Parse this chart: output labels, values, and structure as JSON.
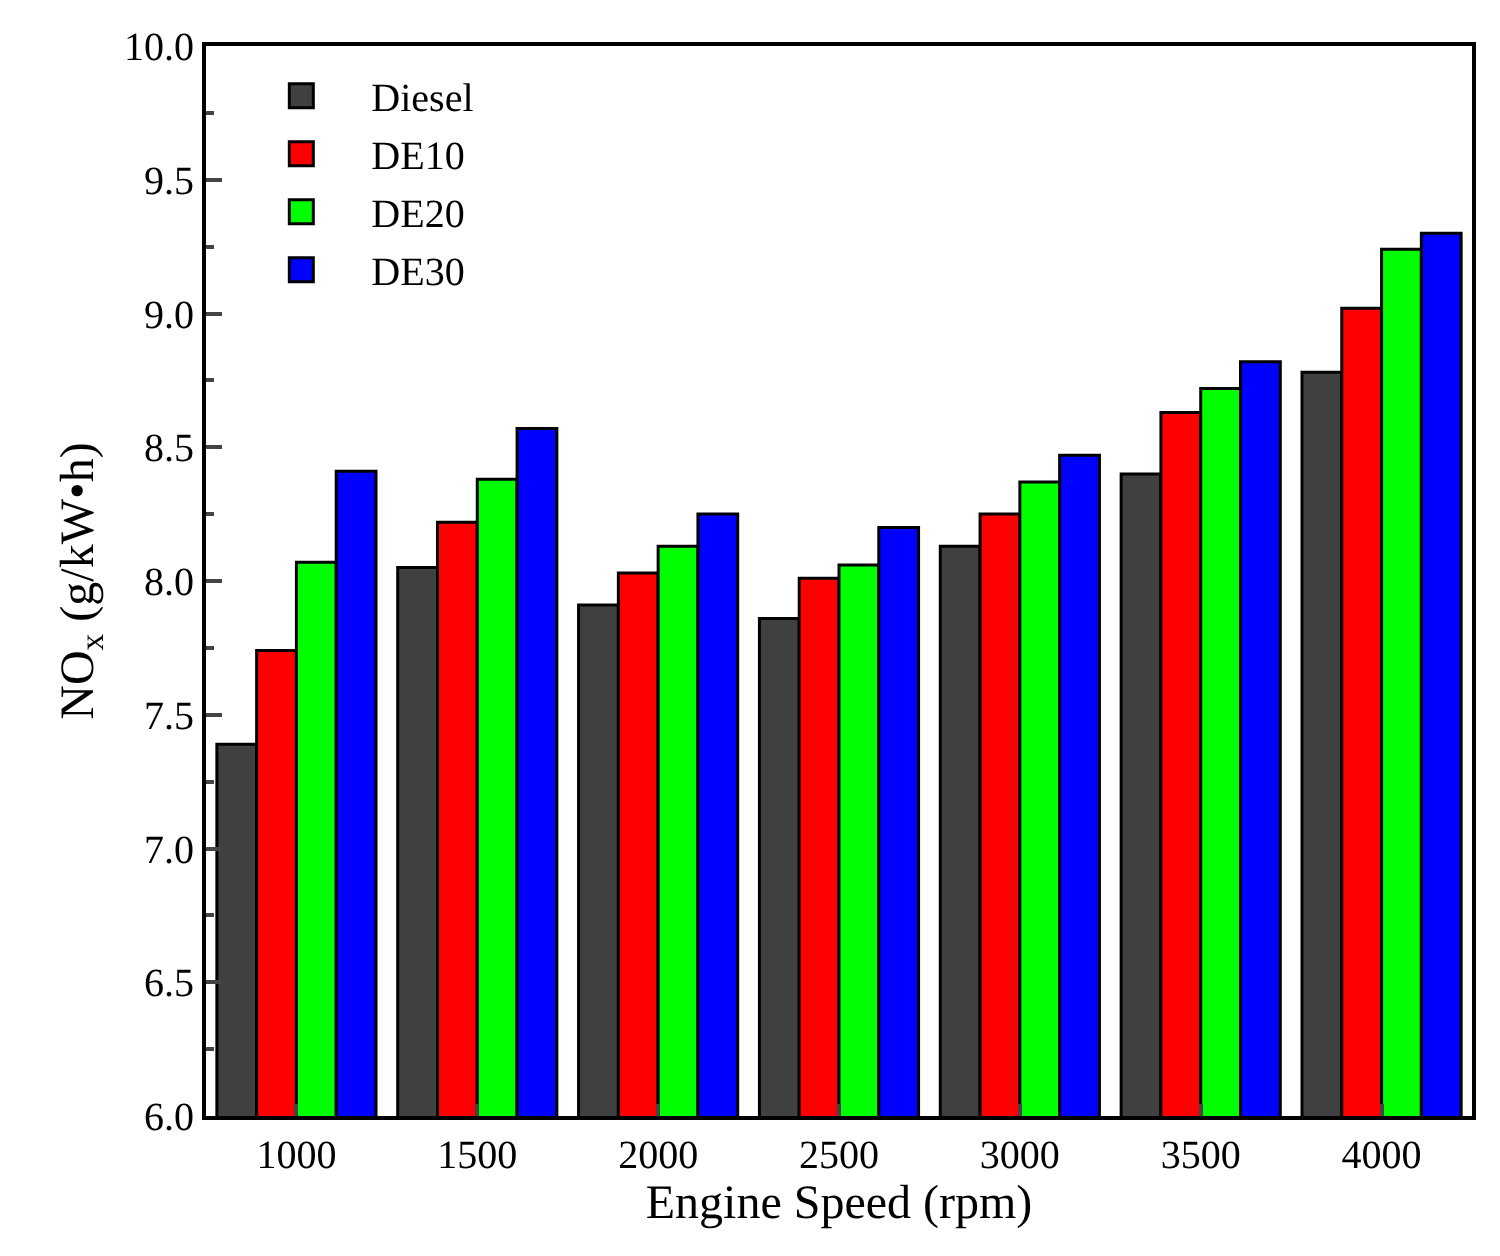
{
  "chart_data": {
    "type": "bar",
    "xlabel": "Engine Speed (rpm)",
    "ylabel": "NO$_{x}$ (g/kW•h)",
    "categories": [
      "1000",
      "1500",
      "2000",
      "2500",
      "3000",
      "3500",
      "4000"
    ],
    "series": [
      {
        "name": "Diesel",
        "color": "#404040",
        "values": [
          7.39,
          8.05,
          7.91,
          7.86,
          8.13,
          8.4,
          8.78
        ]
      },
      {
        "name": "DE10",
        "color": "#ff0000",
        "values": [
          7.74,
          8.22,
          8.03,
          8.01,
          8.25,
          8.63,
          9.02
        ]
      },
      {
        "name": "DE20",
        "color": "#00ff00",
        "values": [
          8.07,
          8.38,
          8.13,
          8.06,
          8.37,
          8.72,
          9.24
        ]
      },
      {
        "name": "DE30",
        "color": "#0000ff",
        "values": [
          8.41,
          8.57,
          8.25,
          8.2,
          8.47,
          8.82,
          9.3
        ]
      }
    ],
    "ylim": [
      6.0,
      10.0
    ],
    "yticks": [
      {
        "value": 6.0,
        "label": "6.0"
      },
      {
        "value": 6.5,
        "label": "6.5"
      },
      {
        "value": 7.0,
        "label": "7.0"
      },
      {
        "value": 7.5,
        "label": "7.5"
      },
      {
        "value": 8.0,
        "label": "8.0"
      },
      {
        "value": 8.5,
        "label": "8.5"
      },
      {
        "value": 9.0,
        "label": "9.0"
      },
      {
        "value": 9.5,
        "label": "9.5"
      },
      {
        "value": 10.0,
        "label": "10.0"
      }
    ],
    "legend": "top left"
  }
}
